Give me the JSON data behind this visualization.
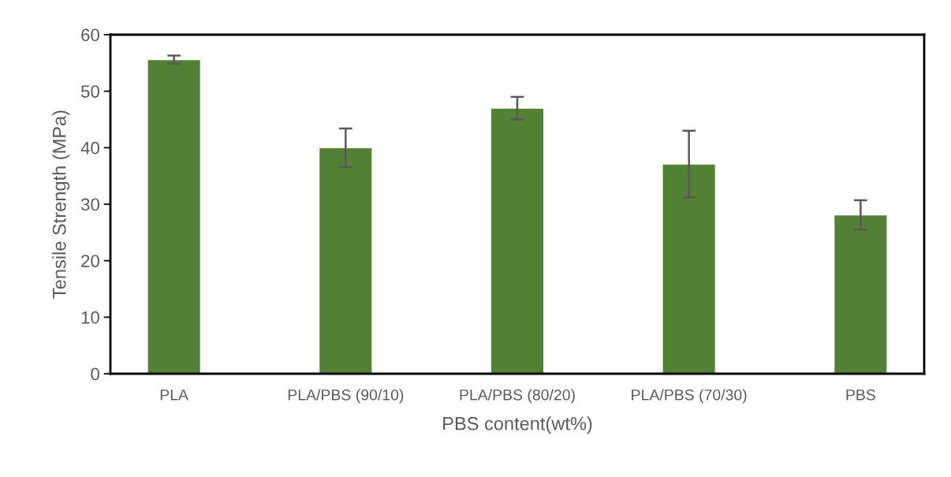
{
  "chart_data": {
    "type": "bar",
    "xlabel": "PBS content(wt%)",
    "ylabel": "Tensile Strength (MPa)",
    "categories": [
      "PLA",
      "PLA/PBS (90/10)",
      "PLA/PBS (80/20)",
      "PLA/PBS (70/30)",
      "PBS"
    ],
    "values": [
      55.6,
      40.0,
      47.0,
      37.1,
      28.1
    ],
    "errors": [
      0.7,
      3.4,
      2.0,
      5.9,
      2.6
    ],
    "color": "#538135",
    "ylim": [
      0,
      60
    ],
    "yticks": [
      0,
      10,
      20,
      30,
      40,
      50,
      60
    ],
    "grid": false,
    "legend": false
  }
}
